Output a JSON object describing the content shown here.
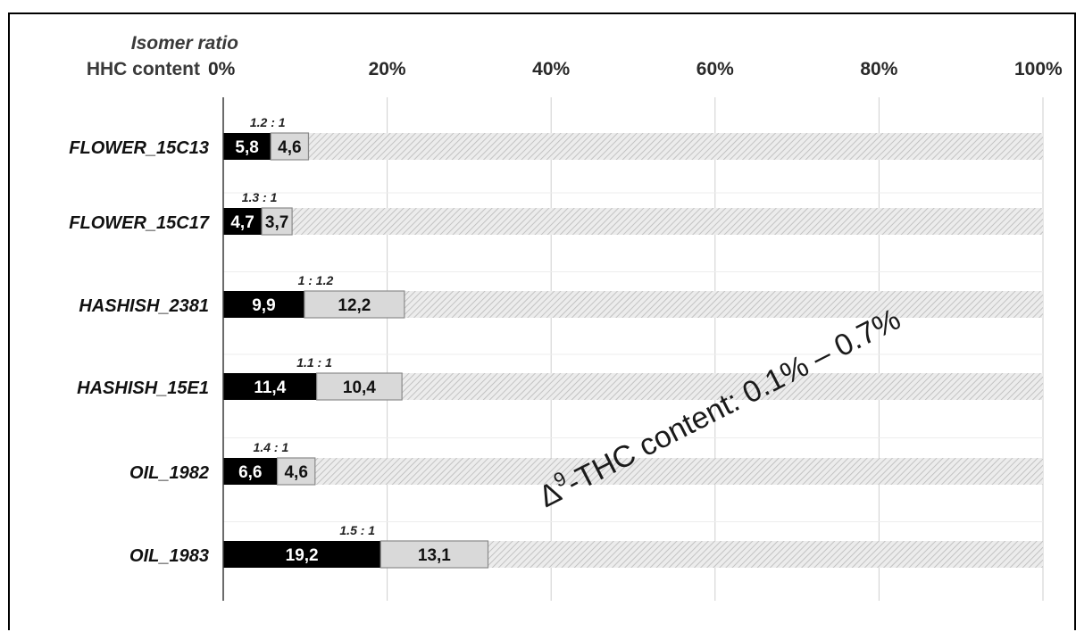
{
  "chart_data": {
    "type": "bar",
    "stacked": true,
    "orientation": "horizontal",
    "header_top": "Isomer ratio",
    "header_bottom": "HHC content",
    "x_ticks": [
      "0%",
      "20%",
      "40%",
      "60%",
      "80%",
      "100%"
    ],
    "xlim": [
      0,
      100
    ],
    "grid": true,
    "categories": [
      "FLOWER_15C13",
      "FLOWER_15C17",
      "HASHISH_2381",
      "HASHISH_15E1",
      "OIL_1982",
      "OIL_1983"
    ],
    "series": [
      {
        "values": [
          5.8,
          4.7,
          9.9,
          11.4,
          6.6,
          19.2
        ],
        "labels": [
          "5,8",
          "4,7",
          "9,9",
          "11,4",
          "6,6",
          "19,2"
        ],
        "color": "#000000"
      },
      {
        "values": [
          4.6,
          3.7,
          12.2,
          10.4,
          4.6,
          13.1
        ],
        "labels": [
          "4,6",
          "3,7",
          "12,2",
          "10,4",
          "4,6",
          "13,1"
        ],
        "color": "#d9d9d9"
      }
    ],
    "remainder_fill": "hatched light gray",
    "ratios": [
      "1.2 : 1",
      "1.3 : 1",
      "1 : 1.2",
      "1.1 : 1",
      "1.4 : 1",
      "1.5 : 1"
    ],
    "annotation": {
      "delta": "Δ",
      "superscript": "9",
      "text": "-THC  content:  0.1% – 0.7%"
    }
  }
}
